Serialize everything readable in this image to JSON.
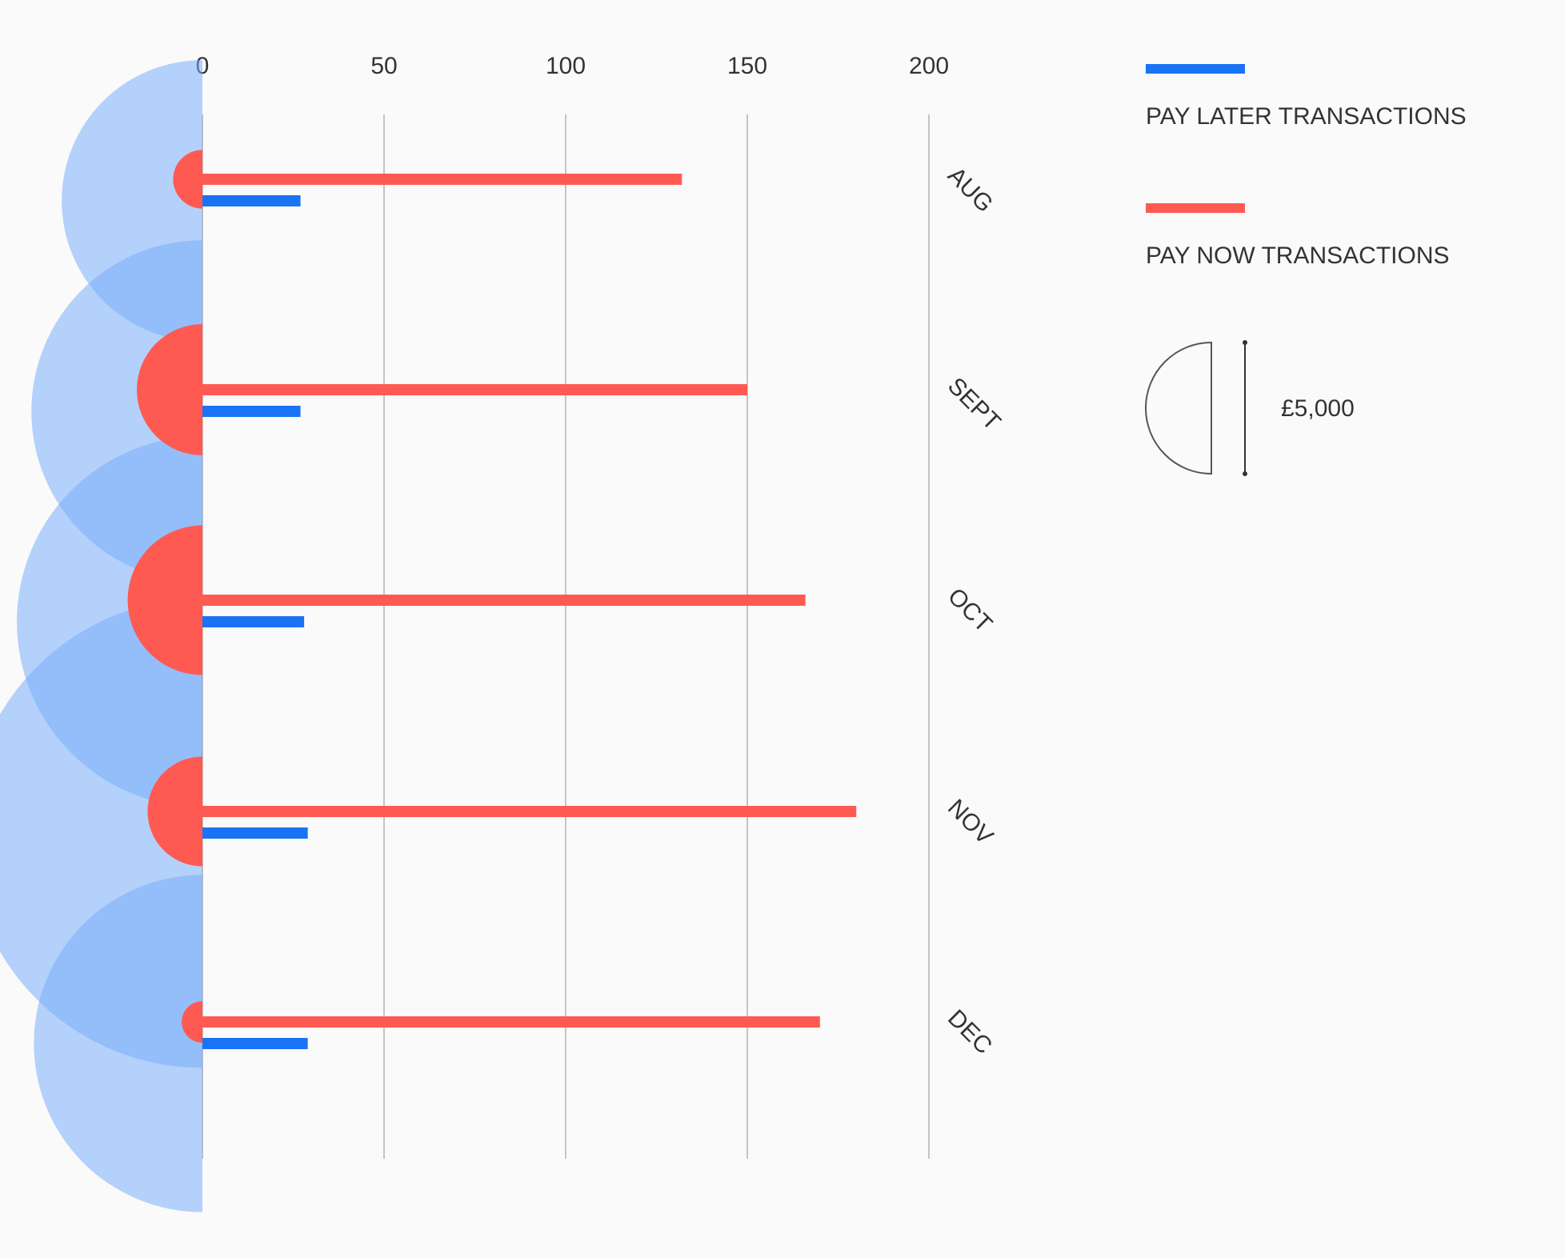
{
  "chart_data": {
    "type": "bar",
    "orientation": "horizontal",
    "categories": [
      "AUG",
      "SEPT",
      "OCT",
      "NOV",
      "DEC"
    ],
    "xlim": [
      0,
      200
    ],
    "xticks": [
      "0",
      "50",
      "100",
      "150",
      "200"
    ],
    "grid": true,
    "series": [
      {
        "name": "PAY NOW TRANSACTIONS",
        "color": "#ff5a52",
        "values": [
          132,
          150,
          166,
          180,
          170
        ],
        "semicircle_scale": [
          1000,
          5000,
          6500,
          3500,
          500
        ]
      },
      {
        "name": "PAY LATER TRANSACTIONS",
        "color": "#1a73f5",
        "values": [
          27,
          27,
          28,
          29,
          29
        ],
        "semicircle_scale": [
          23000,
          34000,
          40000,
          64000,
          33000
        ]
      }
    ],
    "size_legend": {
      "label": "£5,000"
    },
    "legend_position": "right"
  }
}
